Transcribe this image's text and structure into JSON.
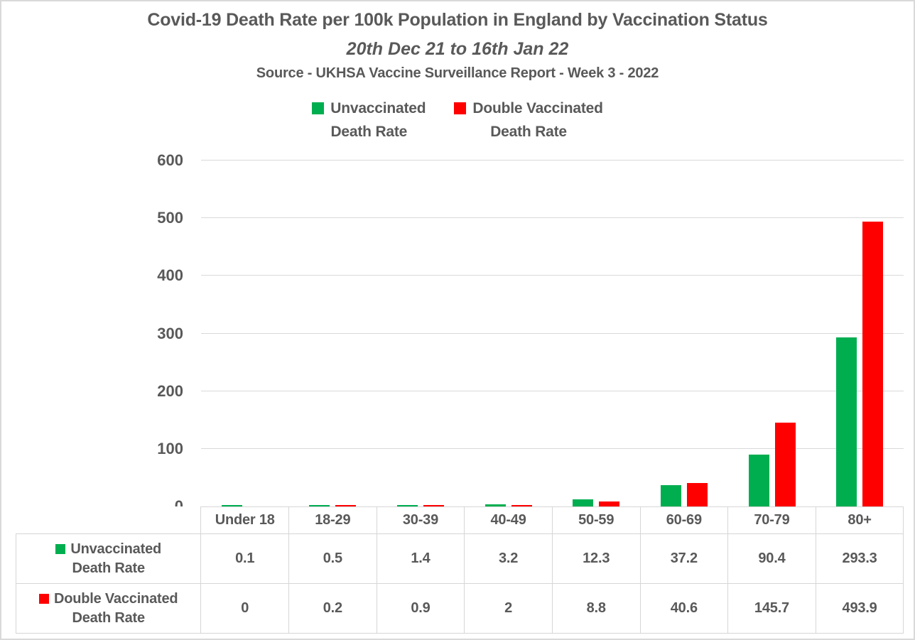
{
  "header": {
    "title": "Covid-19 Death Rate per 100k Population in England by Vaccination Status",
    "subtitle": "20th Dec 21 to 16th Jan 22",
    "source": "Source - UKHSA Vaccine Surveillance Report - Week 3 - 2022"
  },
  "legend": {
    "items": [
      {
        "label_line1": "Unvaccinated",
        "label_line2": "Death Rate",
        "color": "#00AE50"
      },
      {
        "label_line1": "Double Vaccinated",
        "label_line2": "Death Rate",
        "color": "#FF0000"
      }
    ]
  },
  "colors": {
    "unvaccinated": "#00AE50",
    "double_vaccinated": "#FF0000",
    "text": "#595959",
    "gridline": "#D9D9D9",
    "table_border": "#D6D6D6"
  },
  "chart_data": {
    "type": "bar",
    "title": "Covid-19 Death Rate per 100k Population in England by Vaccination Status",
    "subtitle": "20th Dec 21 to 16th Jan 22",
    "source": "Source - UKHSA Vaccine Surveillance Report - Week 3 - 2022",
    "categories": [
      "Under 18",
      "18-29",
      "30-39",
      "40-49",
      "50-59",
      "60-69",
      "70-79",
      "80+"
    ],
    "series": [
      {
        "name": "Unvaccinated Death Rate",
        "label_lines": [
          "Unvaccinated",
          "Death Rate"
        ],
        "color": "#00AE50",
        "values": [
          0.1,
          0.5,
          1.4,
          3.2,
          12.3,
          37.2,
          90.4,
          293.3
        ]
      },
      {
        "name": "Double Vaccinated Death Rate",
        "label_lines": [
          "Double Vaccinated",
          "Death Rate"
        ],
        "color": "#FF0000",
        "values": [
          0,
          0.2,
          0.9,
          2,
          8.8,
          40.6,
          145.7,
          493.9
        ]
      }
    ],
    "xlabel": "",
    "ylabel": "",
    "ylim": [
      0,
      600
    ],
    "yticks": [
      0,
      100,
      200,
      300,
      400,
      500,
      600
    ],
    "grid": true,
    "legend_position": "top",
    "data_table_shown": true
  }
}
